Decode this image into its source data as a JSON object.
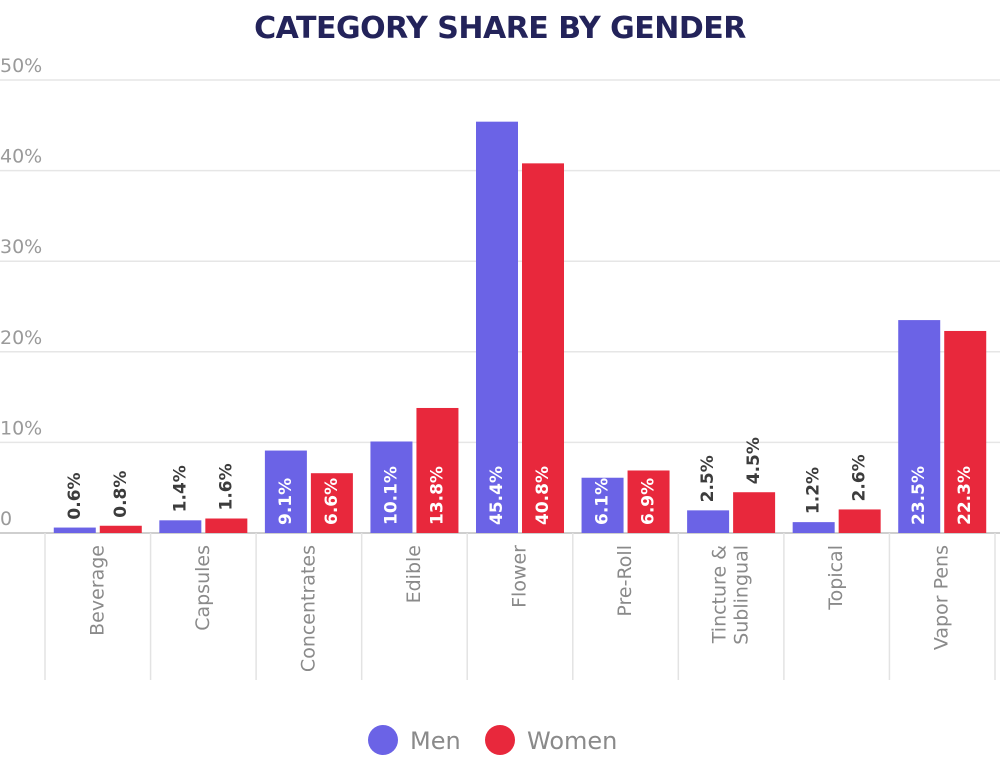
{
  "chart_data": {
    "type": "bar",
    "title": "CATEGORY SHARE BY GENDER",
    "xlabel": "",
    "ylabel": "",
    "ylim": [
      0,
      50
    ],
    "yticks": [
      "0",
      "10%",
      "20%",
      "30%",
      "40%",
      "50%"
    ],
    "grid": true,
    "legend_position": "bottom",
    "categories": [
      [
        "Beverage"
      ],
      [
        "Capsules"
      ],
      [
        "Concentrates"
      ],
      [
        "Edible"
      ],
      [
        "Flower"
      ],
      [
        "Pre-Roll"
      ],
      [
        "Tincture &",
        "Sublingual"
      ],
      [
        "Topical"
      ],
      [
        "Vapor Pens"
      ]
    ],
    "series": [
      {
        "name": "Men",
        "color": "#6b63e6",
        "values": [
          0.6,
          1.4,
          9.1,
          10.1,
          45.4,
          6.1,
          2.5,
          1.2,
          23.5
        ],
        "labels": [
          "0.6%",
          "1.4%",
          "9.1%",
          "10.1%",
          "45.4%",
          "6.1%",
          "2.5%",
          "1.2%",
          "23.5%"
        ]
      },
      {
        "name": "Women",
        "color": "#e8283c",
        "values": [
          0.8,
          1.6,
          6.6,
          13.8,
          40.8,
          6.9,
          4.5,
          2.6,
          22.3
        ],
        "labels": [
          "0.8%",
          "1.6%",
          "6.6%",
          "13.8%",
          "40.8%",
          "6.9%",
          "4.5%",
          "2.6%",
          "22.3%"
        ]
      }
    ]
  }
}
